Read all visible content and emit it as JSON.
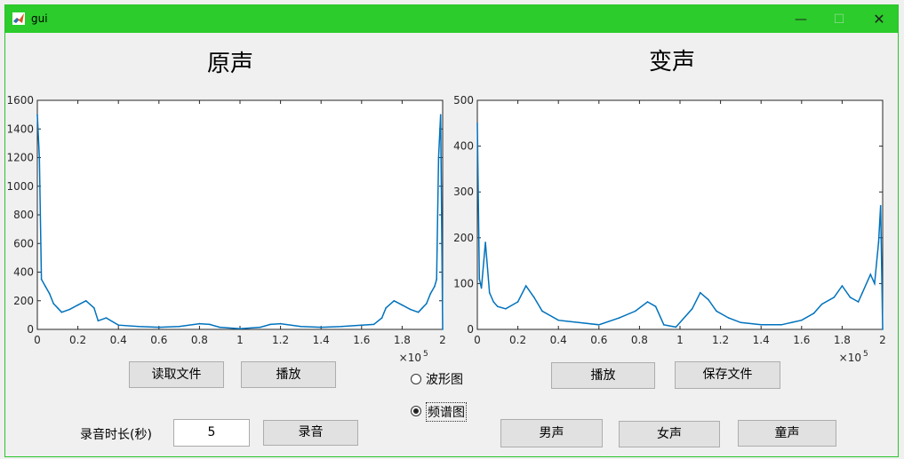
{
  "window": {
    "title": "gui",
    "minimize_glyph": "—",
    "maximize_glyph": "☐",
    "close_glyph": "✕"
  },
  "headings": {
    "original": "原声",
    "modified": "变声"
  },
  "buttons": {
    "read_file": "读取文件",
    "play_original": "播放",
    "record": "录音",
    "play_modified": "播放",
    "save_file": "保存文件",
    "male_voice": "男声",
    "female_voice": "女声",
    "child_voice": "童声"
  },
  "record_duration": {
    "label": "录音时长(秒)",
    "value": "5"
  },
  "view_mode": {
    "options": [
      "波形图",
      "频谱图"
    ],
    "selected": "频谱图"
  },
  "colors": {
    "line": "#0072bd",
    "titlebar": "#2bcc2b"
  },
  "chart_data": [
    {
      "type": "line",
      "name": "original-spectrum",
      "xlim": [
        0,
        2
      ],
      "ylim": [
        0,
        1600
      ],
      "xticks": [
        0,
        0.2,
        0.4,
        0.6,
        0.8,
        1,
        1.2,
        1.4,
        1.6,
        1.8,
        2
      ],
      "yticks": [
        0,
        200,
        400,
        600,
        800,
        1000,
        1200,
        1400,
        1600
      ],
      "x_multiplier": "×10",
      "x_exponent": "5",
      "x": [
        0,
        0.01,
        0.02,
        0.04,
        0.06,
        0.08,
        0.1,
        0.12,
        0.16,
        0.2,
        0.24,
        0.28,
        0.3,
        0.34,
        0.4,
        0.5,
        0.6,
        0.7,
        0.8,
        0.85,
        0.9,
        1.0,
        1.1,
        1.15,
        1.2,
        1.3,
        1.4,
        1.5,
        1.6,
        1.66,
        1.7,
        1.72,
        1.76,
        1.8,
        1.84,
        1.88,
        1.9,
        1.92,
        1.94,
        1.96,
        1.97,
        1.98,
        1.99,
        2.0
      ],
      "y": [
        1500,
        1200,
        350,
        300,
        250,
        180,
        150,
        120,
        140,
        170,
        200,
        150,
        60,
        80,
        30,
        20,
        15,
        20,
        40,
        35,
        15,
        5,
        15,
        35,
        40,
        20,
        15,
        20,
        30,
        35,
        80,
        150,
        200,
        170,
        140,
        120,
        150,
        180,
        250,
        300,
        350,
        1200,
        1500,
        0
      ]
    },
    {
      "type": "line",
      "name": "modified-spectrum",
      "xlim": [
        0,
        2
      ],
      "ylim": [
        0,
        500
      ],
      "xticks": [
        0,
        0.2,
        0.4,
        0.6,
        0.8,
        1,
        1.2,
        1.4,
        1.6,
        1.8,
        2
      ],
      "yticks": [
        0,
        100,
        200,
        300,
        400,
        500
      ],
      "x_multiplier": "×10",
      "x_exponent": "5",
      "x": [
        0,
        0.01,
        0.02,
        0.04,
        0.06,
        0.08,
        0.1,
        0.14,
        0.2,
        0.24,
        0.28,
        0.32,
        0.4,
        0.5,
        0.6,
        0.7,
        0.78,
        0.84,
        0.88,
        0.92,
        0.98,
        1.06,
        1.1,
        1.14,
        1.18,
        1.24,
        1.3,
        1.4,
        1.5,
        1.6,
        1.66,
        1.7,
        1.76,
        1.8,
        1.84,
        1.88,
        1.9,
        1.94,
        1.96,
        1.98,
        1.99,
        2.0
      ],
      "y": [
        450,
        110,
        90,
        190,
        80,
        60,
        50,
        45,
        60,
        95,
        70,
        40,
        20,
        15,
        10,
        25,
        40,
        60,
        50,
        10,
        5,
        45,
        80,
        65,
        40,
        25,
        15,
        10,
        10,
        20,
        35,
        55,
        70,
        95,
        70,
        60,
        80,
        120,
        100,
        190,
        270,
        0
      ]
    }
  ]
}
